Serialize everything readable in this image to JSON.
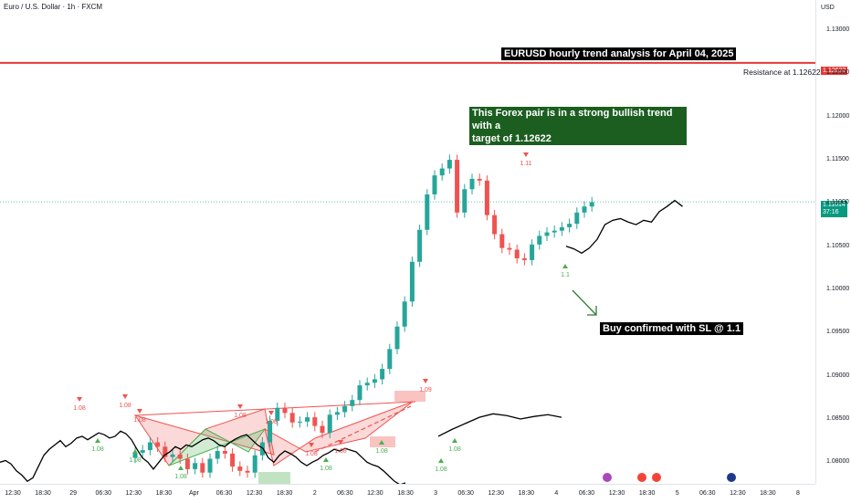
{
  "header": {
    "symbol": "Euro / U.S. Dollar · 1h · FXCM",
    "currency": "USD"
  },
  "annotations": {
    "title": "EURUSD hourly trend analysis for April 04, 2025",
    "trend_note_line1": "This Forex pair is in a strong bullish trend with a",
    "trend_note_line2": "target of 1.12622",
    "buy_note": "Buy confirmed with SL @ 1.1",
    "resistance_label": "Resistance at 1.12622"
  },
  "price_tags": {
    "resistance": "1.12622",
    "current": "1.11014",
    "countdown": "37:16"
  },
  "colors": {
    "bull": "#26a69a",
    "bear": "#ef5350",
    "resistance": "#e53935",
    "line": "#000000",
    "note_green": "#1b5e20",
    "current_tag": "#089981"
  },
  "chart_data": {
    "type": "line",
    "ylim": [
      1.0775,
      1.1335
    ],
    "y_ticks": [
      "1.13000",
      "1.12500",
      "1.12000",
      "1.11500",
      "1.11000",
      "1.10500",
      "1.10000",
      "1.09500",
      "1.09000",
      "1.08500",
      "1.08000"
    ],
    "x_ticks": [
      "12:30",
      "18:30",
      "29",
      "06:30",
      "12:30",
      "18:30",
      "Apr",
      "06:30",
      "12:30",
      "18:30",
      "2",
      "06:30",
      "12:30",
      "18:30",
      "3",
      "06:30",
      "12:30",
      "18:30",
      "4",
      "06:30",
      "12:30",
      "18:30",
      "5",
      "06:30",
      "12:30",
      "18:30",
      "8"
    ],
    "resistance": 1.12622,
    "current_price": 1.11014,
    "close_series": {
      "name": "",
      "values": [
        1.08,
        1.0802,
        1.0798,
        1.079,
        1.0785,
        1.0778,
        1.0782,
        1.0795,
        1.0808,
        1.0815,
        1.082,
        1.0825,
        1.0818,
        1.0822,
        1.0828,
        1.083,
        1.0826,
        1.083,
        1.0834,
        1.0832,
        1.0828,
        1.083,
        1.0836,
        1.0833,
        1.0826,
        1.0815,
        1.0805,
        1.08,
        1.0792,
        1.08,
        1.0808,
        1.0812,
        1.0818,
        1.0815,
        1.082,
        1.0818,
        1.0822,
        1.0826,
        1.0828,
        1.0825,
        1.082,
        1.0818,
        1.0823,
        1.0827,
        1.083,
        1.0832,
        1.0826,
        1.082,
        1.0816,
        1.0805,
        1.08,
        1.0808,
        1.0813,
        1.081,
        1.0806,
        1.08,
        1.0796,
        1.08,
        1.0803,
        1.0808,
        1.0811,
        1.0815,
        1.0813,
        1.0816,
        1.0814,
        1.0812,
        1.0806,
        1.08,
        1.0797,
        1.0795,
        1.079,
        1.0784,
        1.0778,
        1.0774,
        1.0776
      ],
      "extension": [
        1.083,
        1.0838,
        1.0845,
        1.0852,
        1.0856,
        1.0854,
        1.085,
        1.0853,
        1.0855,
        1.0852
      ]
    },
    "tail_series": {
      "name": "",
      "values": [
        1.105,
        1.1047,
        1.1042,
        1.1048,
        1.1058,
        1.1075,
        1.108,
        1.1082,
        1.1078,
        1.1075,
        1.108,
        1.1078,
        1.109,
        1.1096,
        1.1103,
        1.1096
      ]
    },
    "candles": {
      "open": [
        1.0805,
        1.0811,
        1.0814,
        1.0823,
        1.0818,
        1.0806,
        1.0809,
        1.0804,
        1.0792,
        1.0799,
        1.0788,
        1.0804,
        1.0813,
        1.081,
        1.0795,
        1.079,
        1.0788,
        1.0808,
        1.0823,
        1.0848,
        1.0863,
        1.0857,
        1.0846,
        1.0847,
        1.0852,
        1.0842,
        1.0834,
        1.0855,
        1.0858,
        1.0865,
        1.0872,
        1.0889,
        1.0892,
        1.0896,
        1.0908,
        1.0931,
        1.0957,
        1.0986,
        1.1032,
        1.1069,
        1.111,
        1.1132,
        1.114,
        1.115,
        1.1089,
        1.1116,
        1.1128,
        1.1126,
        1.1086,
        1.1064,
        1.1048,
        1.1046,
        1.1036,
        1.1034,
        1.1052,
        1.1062,
        1.1066,
        1.1068,
        1.1072,
        1.1076,
        1.1089,
        1.1096
      ],
      "close": [
        1.0811,
        1.0814,
        1.0823,
        1.0818,
        1.0806,
        1.0809,
        1.0804,
        1.0792,
        1.0799,
        1.0788,
        1.0804,
        1.0813,
        1.081,
        1.0795,
        1.079,
        1.0788,
        1.0808,
        1.0823,
        1.0848,
        1.0863,
        1.0857,
        1.0846,
        1.0847,
        1.0852,
        1.0842,
        1.0834,
        1.0855,
        1.0858,
        1.0865,
        1.0872,
        1.0889,
        1.0892,
        1.0896,
        1.0908,
        1.0931,
        1.0957,
        1.0986,
        1.1032,
        1.1069,
        1.111,
        1.1132,
        1.114,
        1.115,
        1.1089,
        1.1116,
        1.1128,
        1.1126,
        1.1086,
        1.1064,
        1.1048,
        1.1046,
        1.1036,
        1.1034,
        1.1052,
        1.1062,
        1.1066,
        1.1068,
        1.1072,
        1.1076,
        1.1089,
        1.1096,
        1.1101
      ]
    },
    "markers": [
      {
        "label": "1.08",
        "dir": "down"
      },
      {
        "label": "1.08",
        "dir": "up"
      },
      {
        "label": "1.08",
        "dir": "down"
      },
      {
        "label": "1.08",
        "dir": "down"
      },
      {
        "label": "1.08",
        "dir": "up"
      },
      {
        "label": "1.08",
        "dir": "up"
      },
      {
        "label": "1.08",
        "dir": "down"
      },
      {
        "label": "1.08",
        "dir": "down"
      },
      {
        "label": "1.08",
        "dir": "down"
      },
      {
        "label": "1.08",
        "dir": "up"
      },
      {
        "label": "1.08",
        "dir": "down"
      },
      {
        "label": "1.08",
        "dir": "up"
      },
      {
        "label": "1.08",
        "dir": "up"
      },
      {
        "label": "1.09",
        "dir": "down"
      },
      {
        "label": "1.08",
        "dir": "up"
      },
      {
        "label": "1.11",
        "dir": "down"
      },
      {
        "label": "1.1",
        "dir": "up"
      }
    ]
  }
}
